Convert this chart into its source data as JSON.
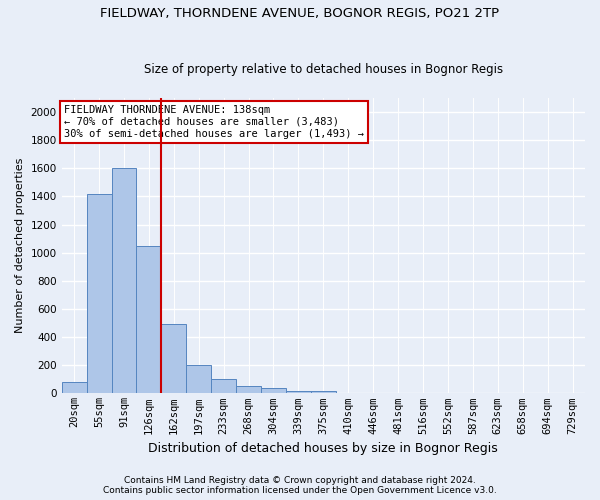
{
  "title1": "FIELDWAY, THORNDENE AVENUE, BOGNOR REGIS, PO21 2TP",
  "title2": "Size of property relative to detached houses in Bognor Regis",
  "xlabel": "Distribution of detached houses by size in Bognor Regis",
  "ylabel": "Number of detached properties",
  "categories": [
    "20sqm",
    "55sqm",
    "91sqm",
    "126sqm",
    "162sqm",
    "197sqm",
    "233sqm",
    "268sqm",
    "304sqm",
    "339sqm",
    "375sqm",
    "410sqm",
    "446sqm",
    "481sqm",
    "516sqm",
    "552sqm",
    "587sqm",
    "623sqm",
    "658sqm",
    "694sqm",
    "729sqm"
  ],
  "values": [
    80,
    1420,
    1600,
    1050,
    490,
    205,
    105,
    50,
    35,
    20,
    15,
    0,
    0,
    0,
    0,
    0,
    0,
    0,
    0,
    0,
    0
  ],
  "bar_color": "#aec6e8",
  "bar_edge_color": "#5585c0",
  "vline_x": 3.5,
  "vline_color": "#cc0000",
  "annotation_title": "FIELDWAY THORNDENE AVENUE: 138sqm",
  "annotation_line1": "← 70% of detached houses are smaller (3,483)",
  "annotation_line2": "30% of semi-detached houses are larger (1,493) →",
  "annotation_box_color": "#ffffff",
  "annotation_box_edge": "#cc0000",
  "ylim": [
    0,
    2100
  ],
  "yticks": [
    0,
    200,
    400,
    600,
    800,
    1000,
    1200,
    1400,
    1600,
    1800,
    2000
  ],
  "footer1": "Contains HM Land Registry data © Crown copyright and database right 2024.",
  "footer2": "Contains public sector information licensed under the Open Government Licence v3.0.",
  "background_color": "#e8eef8",
  "grid_color": "#ffffff",
  "title1_fontsize": 9.5,
  "title2_fontsize": 8.5,
  "ylabel_fontsize": 8,
  "xlabel_fontsize": 9,
  "footer_fontsize": 6.5,
  "tick_fontsize": 7.5,
  "annotation_fontsize": 7.5
}
